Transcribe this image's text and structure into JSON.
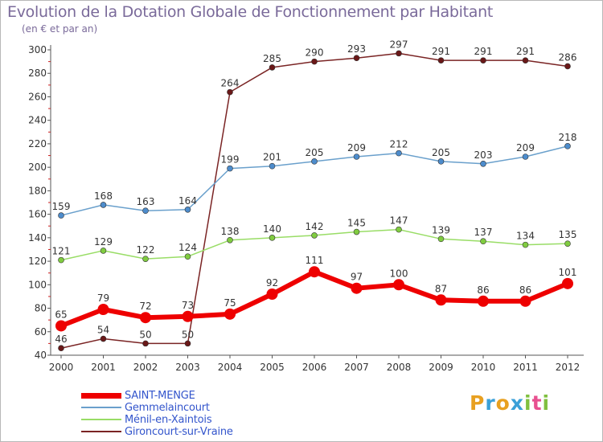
{
  "title": "Evolution de la Dotation Globale de Fonctionnement par Habitant",
  "subtitle": "(en € et par an)",
  "chart_data": {
    "type": "line",
    "title": "Evolution de la Dotation Globale de Fonctionnement par Habitant",
    "subtitle": "(en € et par an)",
    "x": [
      "2000",
      "2001",
      "2002",
      "2003",
      "2004",
      "2005",
      "2006",
      "2007",
      "2008",
      "2009",
      "2010",
      "2011",
      "2012"
    ],
    "ylim": [
      40,
      300
    ],
    "yticks": [
      40,
      60,
      80,
      100,
      120,
      140,
      160,
      180,
      200,
      220,
      240,
      260,
      280,
      300
    ],
    "grid": false,
    "legend": "bottom-left",
    "series": [
      {
        "name": "Gironcourt-sur-Vraine",
        "color": "#7a2424",
        "values": [
          46,
          54,
          50,
          50,
          264,
          285,
          290,
          293,
          297,
          291,
          291,
          291,
          286
        ]
      },
      {
        "name": "Gemmelaincourt",
        "color": "#6aa0cc",
        "values": [
          159,
          168,
          163,
          164,
          199,
          201,
          205,
          209,
          212,
          205,
          203,
          209,
          218
        ]
      },
      {
        "name": "Ménil-en-Xaintois",
        "color": "#99dd66",
        "values": [
          121,
          129,
          122,
          124,
          138,
          140,
          142,
          145,
          147,
          139,
          137,
          134,
          135
        ]
      },
      {
        "name": "SAINT-MENGE",
        "color": "#ee0000",
        "values": [
          65,
          79,
          72,
          73,
          75,
          92,
          111,
          97,
          100,
          87,
          86,
          86,
          101
        ]
      }
    ]
  },
  "legend": {
    "items": [
      {
        "label": "SAINT-MENGE",
        "color": "#ee0000"
      },
      {
        "label": "Gemmelaincourt",
        "color": "#6aa0cc"
      },
      {
        "label": "Ménil-en-Xaintois",
        "color": "#99dd66"
      },
      {
        "label": "Gironcourt-sur-Vraine",
        "color": "#7a2424"
      }
    ]
  },
  "logo": {
    "text": "Proxiti",
    "colors": [
      "#e8a020",
      "#3aa0d8",
      "#e8a020",
      "#3aa0d8",
      "#80c040",
      "#e85090",
      "#80c040"
    ]
  }
}
